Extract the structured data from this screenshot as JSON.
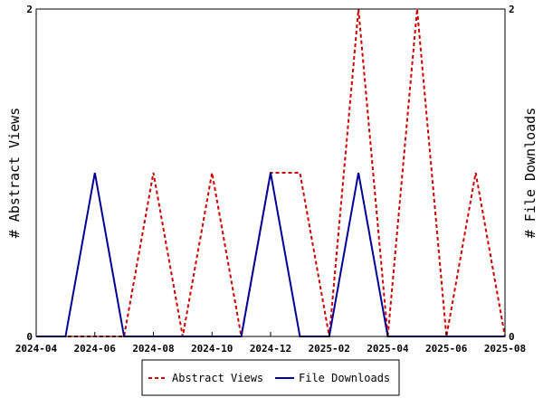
{
  "chart_data": {
    "type": "line",
    "title": "",
    "x": [
      "2024-04",
      "2024-05",
      "2024-06",
      "2024-07",
      "2024-08",
      "2024-09",
      "2024-10",
      "2024-11",
      "2024-12",
      "2025-01",
      "2025-02",
      "2025-03",
      "2025-04",
      "2025-05",
      "2025-06",
      "2025-07",
      "2025-08"
    ],
    "xticks": [
      "2024-04",
      "2024-06",
      "2024-08",
      "2024-10",
      "2024-12",
      "2025-02",
      "2025-04",
      "2025-06",
      "2025-08"
    ],
    "ylabel": "# Abstract Views",
    "y2label": "# File Downloads",
    "ylim": [
      0,
      2
    ],
    "y2lim": [
      0,
      2
    ],
    "yticks": [
      "0",
      "2"
    ],
    "y2ticks": [
      "0",
      "2"
    ],
    "grid": false,
    "legend_position": "bottom",
    "series": [
      {
        "name": "Abstract Views",
        "axis": "left",
        "color": "#cc0000",
        "style": "dashed",
        "values": [
          0,
          0,
          0,
          0,
          1,
          0,
          1,
          0,
          1,
          1,
          0,
          2,
          0,
          2,
          0,
          1,
          0
        ]
      },
      {
        "name": "File Downloads",
        "axis": "right",
        "color": "#000099",
        "style": "solid",
        "values": [
          0,
          0,
          1,
          0,
          0,
          0,
          0,
          0,
          1,
          0,
          0,
          1,
          0,
          0,
          0,
          0,
          0
        ]
      }
    ]
  }
}
